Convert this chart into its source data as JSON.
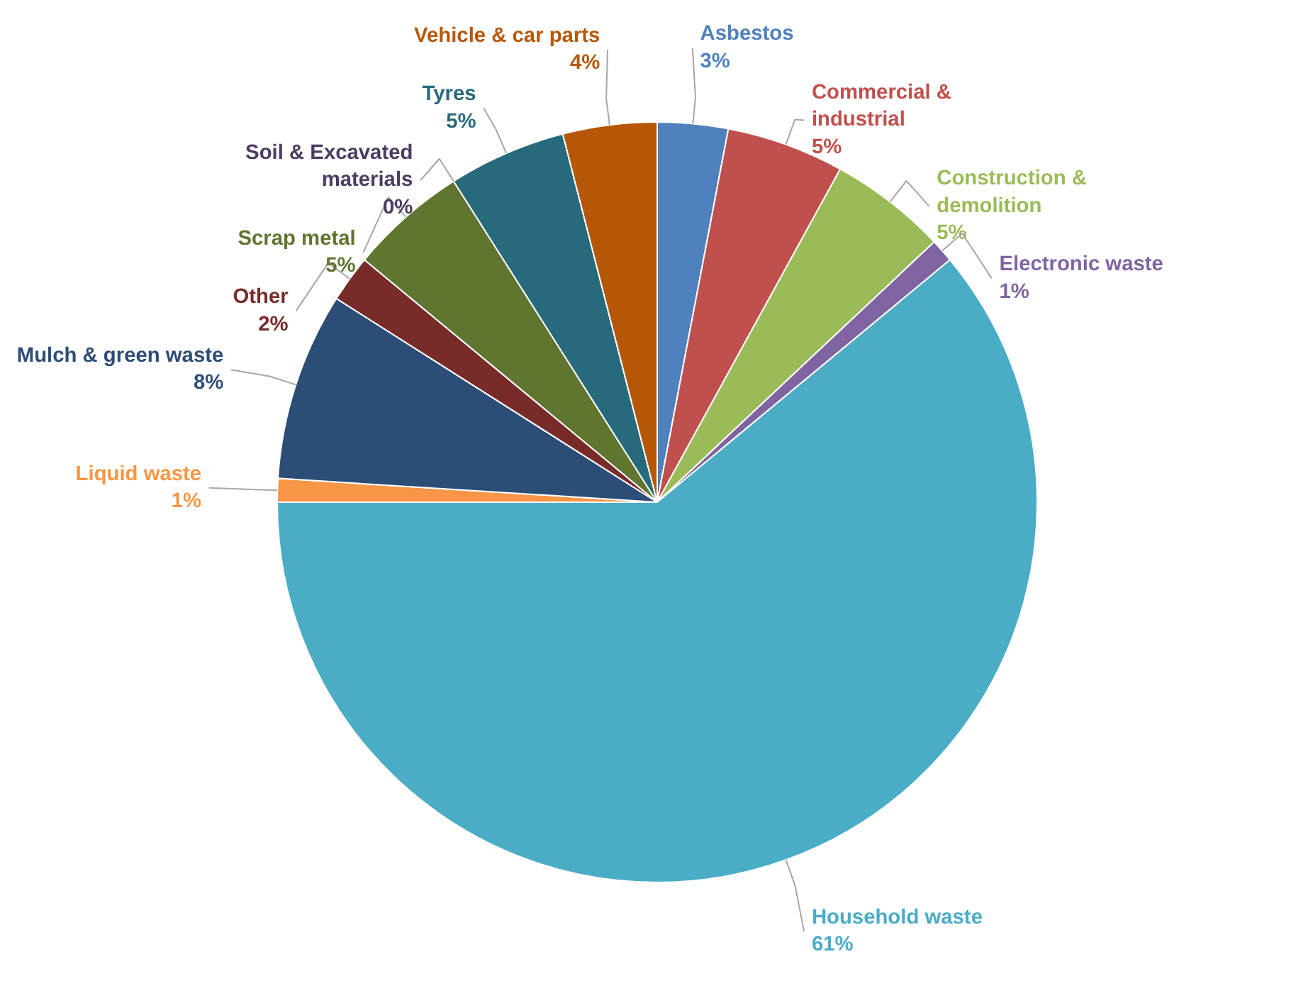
{
  "chart_data": {
    "type": "pie",
    "categories": [
      "Asbestos",
      "Commercial & industrial",
      "Construction & demolition",
      "Electronic waste",
      "Household waste",
      "Liquid waste",
      "Mulch & green waste",
      "Other",
      "Scrap metal",
      "Soil & Excavated materials",
      "Tyres",
      "Vehicle & car parts"
    ],
    "values": [
      3,
      5,
      5,
      1,
      61,
      1,
      8,
      2,
      5,
      0,
      5,
      4
    ],
    "value_labels": [
      "3%",
      "5%",
      "5%",
      "1%",
      "61%",
      "1%",
      "8%",
      "2%",
      "5%",
      "0%",
      "5%",
      "4%"
    ],
    "colors": [
      "#4f81bd",
      "#c0504d",
      "#9bbb59",
      "#8064a2",
      "#4bacc6",
      "#f79646",
      "#2c4d75",
      "#772c2a",
      "#5f7530",
      "#4d3b62",
      "#276a7c",
      "#b65708"
    ]
  }
}
